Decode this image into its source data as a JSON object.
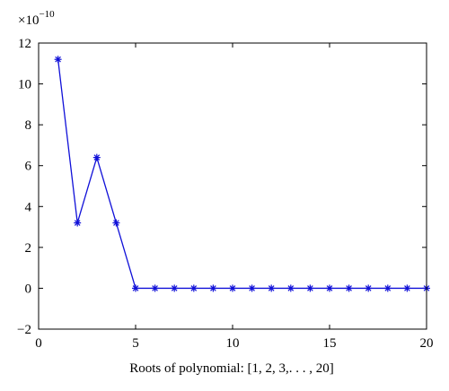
{
  "chart_data": {
    "type": "line",
    "xlabel": "Roots of polynomial: [1, 2, 3,. . . , 20]",
    "ylabel": "",
    "title": "",
    "y_multiplier": {
      "base": "×10",
      "exponent": "−10"
    },
    "xlim": [
      0,
      20
    ],
    "ylim": [
      -2,
      12
    ],
    "xticks": [
      0,
      5,
      10,
      15,
      20
    ],
    "yticks": [
      -2,
      0,
      2,
      4,
      6,
      8,
      10,
      12
    ],
    "ytick_labels": [
      "−2",
      "0",
      "2",
      "4",
      "6",
      "8",
      "10",
      "12"
    ],
    "grid": false,
    "marker": "asterisk",
    "line_color": "#1010d8",
    "series": [
      {
        "x": [
          1,
          2,
          3,
          4,
          5,
          6,
          7,
          8,
          9,
          10,
          11,
          12,
          13,
          14,
          15,
          16,
          17,
          18,
          19,
          20
        ],
        "values": [
          11.2,
          3.2,
          6.4,
          3.2,
          0,
          0,
          0,
          0,
          0,
          0,
          0,
          0,
          0,
          0,
          0,
          0,
          0,
          0,
          0,
          0
        ]
      }
    ]
  }
}
